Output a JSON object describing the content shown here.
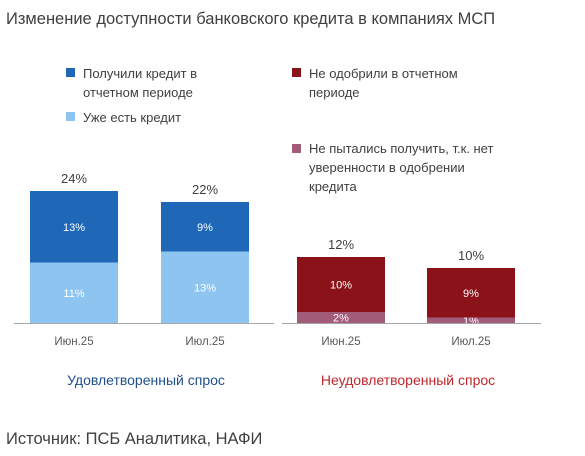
{
  "title": "Изменение доступности банковского кредита в компаниях МСП",
  "source": "Источник: ПСБ Аналитика, НАФИ",
  "colors": {
    "got_credit": "#1f67b7",
    "has_credit": "#8ec4f0",
    "not_approved": "#8b1219",
    "not_tried": "#a25b79",
    "satisfied_label": "#1f4e8c",
    "unsatisfied_label": "#c0272d",
    "axis": "#a6a6a6",
    "text": "#404040"
  },
  "chart_data": [
    {
      "type": "bar",
      "stacked": true,
      "title": "Удовлетворенный спрос",
      "categories": [
        "Июн.25",
        "Июл.25"
      ],
      "series": [
        {
          "name": "Уже есть кредит",
          "values": [
            11,
            13
          ],
          "labels": [
            "11%",
            "13%"
          ],
          "color": "#8ec4f0"
        },
        {
          "name": "Получили кредит в отчетном периоде",
          "values": [
            13,
            9
          ],
          "labels": [
            "13%",
            "9%"
          ],
          "color": "#1f67b7"
        }
      ],
      "totals": [
        "24%",
        "22%"
      ],
      "ylim": [
        0,
        25
      ],
      "legend": "top"
    },
    {
      "type": "bar",
      "stacked": true,
      "title": "Неудовлетворенный спрос",
      "categories": [
        "Июн.25",
        "Июл.25"
      ],
      "series": [
        {
          "name": "Не пытались получить, т.к. нет уверенности в одобрении кредита",
          "values": [
            2,
            1
          ],
          "labels": [
            "2%",
            "1%"
          ],
          "color": "#a25b79"
        },
        {
          "name": "Не одобрили в отчетном периоде",
          "values": [
            10,
            9
          ],
          "labels": [
            "10%",
            "9%"
          ],
          "color": "#8b1219"
        }
      ],
      "totals": [
        "12%",
        "10%"
      ],
      "ylim": [
        0,
        25
      ],
      "legend": "top"
    }
  ]
}
